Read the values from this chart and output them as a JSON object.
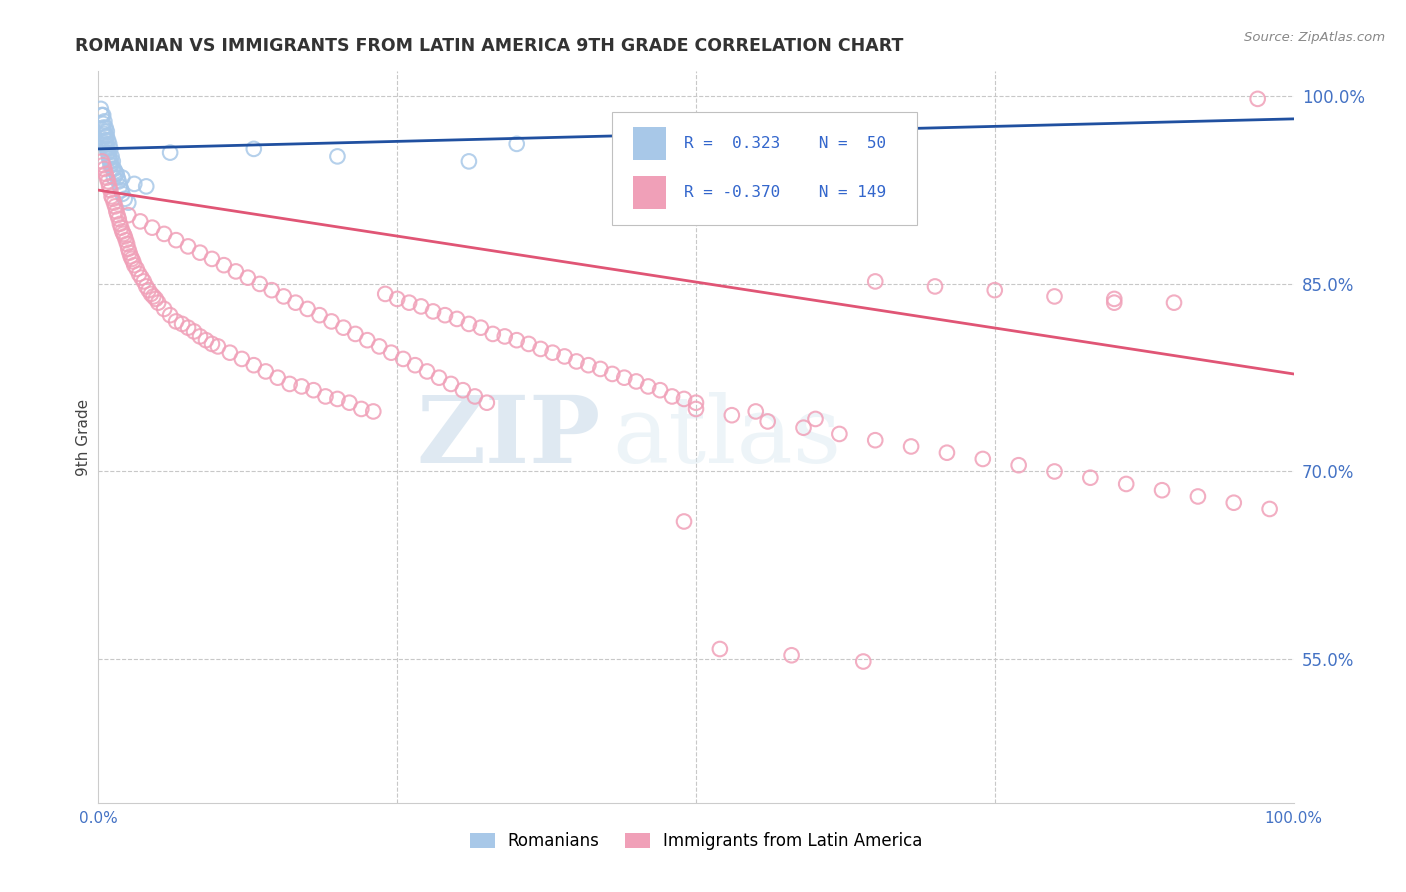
{
  "title": "ROMANIAN VS IMMIGRANTS FROM LATIN AMERICA 9TH GRADE CORRELATION CHART",
  "source": "Source: ZipAtlas.com",
  "ylabel": "9th Grade",
  "xlim": [
    0.0,
    1.0
  ],
  "ylim": [
    0.435,
    1.02
  ],
  "yticks": [
    1.0,
    0.85,
    0.7,
    0.55
  ],
  "ytick_labels": [
    "100.0%",
    "85.0%",
    "70.0%",
    "55.0%"
  ],
  "grid_color": "#c8c8c8",
  "background_color": "#ffffff",
  "blue_color": "#a8c8e8",
  "pink_color": "#f0a0b8",
  "blue_line_color": "#2050a0",
  "pink_line_color": "#e05575",
  "legend_label_blue": "Romanians",
  "legend_label_pink": "Immigrants from Latin America",
  "watermark_ZIP": "ZIP",
  "watermark_atlas": "atlas",
  "blue_line_x": [
    0.0,
    1.0
  ],
  "blue_line_y": [
    0.958,
    0.982
  ],
  "pink_line_x": [
    0.0,
    1.0
  ],
  "pink_line_y": [
    0.925,
    0.778
  ],
  "blue_x": [
    0.002,
    0.003,
    0.004,
    0.004,
    0.005,
    0.005,
    0.006,
    0.006,
    0.007,
    0.007,
    0.007,
    0.008,
    0.008,
    0.009,
    0.009,
    0.01,
    0.01,
    0.011,
    0.012,
    0.013,
    0.013,
    0.014,
    0.015,
    0.016,
    0.017,
    0.018,
    0.019,
    0.02,
    0.022,
    0.025,
    0.003,
    0.004,
    0.005,
    0.006,
    0.006,
    0.007,
    0.008,
    0.009,
    0.01,
    0.011,
    0.012,
    0.015,
    0.02,
    0.03,
    0.04,
    0.06,
    0.13,
    0.2,
    0.31,
    0.35
  ],
  "blue_y": [
    0.99,
    0.985,
    0.985,
    0.975,
    0.98,
    0.97,
    0.975,
    0.965,
    0.972,
    0.968,
    0.96,
    0.965,
    0.955,
    0.962,
    0.95,
    0.958,
    0.945,
    0.952,
    0.948,
    0.942,
    0.935,
    0.94,
    0.938,
    0.935,
    0.932,
    0.928,
    0.925,
    0.922,
    0.918,
    0.915,
    0.985,
    0.978,
    0.972,
    0.968,
    0.962,
    0.958,
    0.955,
    0.952,
    0.948,
    0.945,
    0.942,
    0.938,
    0.935,
    0.93,
    0.928,
    0.955,
    0.958,
    0.952,
    0.948,
    0.962
  ],
  "pink_x": [
    0.003,
    0.004,
    0.005,
    0.006,
    0.007,
    0.008,
    0.009,
    0.01,
    0.011,
    0.012,
    0.013,
    0.014,
    0.015,
    0.016,
    0.017,
    0.018,
    0.019,
    0.02,
    0.021,
    0.022,
    0.023,
    0.024,
    0.025,
    0.026,
    0.027,
    0.028,
    0.029,
    0.03,
    0.032,
    0.034,
    0.036,
    0.038,
    0.04,
    0.042,
    0.044,
    0.046,
    0.048,
    0.05,
    0.055,
    0.06,
    0.065,
    0.07,
    0.075,
    0.08,
    0.085,
    0.09,
    0.095,
    0.1,
    0.11,
    0.12,
    0.13,
    0.14,
    0.15,
    0.16,
    0.17,
    0.18,
    0.19,
    0.2,
    0.21,
    0.22,
    0.23,
    0.24,
    0.25,
    0.26,
    0.27,
    0.28,
    0.29,
    0.3,
    0.31,
    0.32,
    0.33,
    0.34,
    0.35,
    0.36,
    0.37,
    0.38,
    0.39,
    0.4,
    0.41,
    0.42,
    0.43,
    0.44,
    0.45,
    0.46,
    0.47,
    0.48,
    0.49,
    0.5,
    0.55,
    0.6,
    0.65,
    0.7,
    0.75,
    0.8,
    0.85,
    0.9,
    0.025,
    0.035,
    0.045,
    0.055,
    0.065,
    0.075,
    0.085,
    0.095,
    0.105,
    0.115,
    0.125,
    0.135,
    0.145,
    0.155,
    0.165,
    0.175,
    0.185,
    0.195,
    0.205,
    0.215,
    0.225,
    0.235,
    0.245,
    0.255,
    0.265,
    0.275,
    0.285,
    0.295,
    0.305,
    0.315,
    0.325,
    0.5,
    0.53,
    0.56,
    0.59,
    0.62,
    0.65,
    0.68,
    0.71,
    0.74,
    0.77,
    0.8,
    0.83,
    0.86,
    0.89,
    0.92,
    0.95,
    0.98,
    0.49,
    0.52,
    0.58,
    0.64,
    0.85,
    0.97
  ],
  "pink_y": [
    0.948,
    0.945,
    0.942,
    0.938,
    0.935,
    0.932,
    0.928,
    0.925,
    0.92,
    0.918,
    0.915,
    0.912,
    0.908,
    0.905,
    0.902,
    0.898,
    0.895,
    0.892,
    0.89,
    0.888,
    0.885,
    0.882,
    0.878,
    0.875,
    0.872,
    0.87,
    0.868,
    0.865,
    0.862,
    0.858,
    0.855,
    0.852,
    0.848,
    0.845,
    0.842,
    0.84,
    0.838,
    0.835,
    0.83,
    0.825,
    0.82,
    0.818,
    0.815,
    0.812,
    0.808,
    0.805,
    0.802,
    0.8,
    0.795,
    0.79,
    0.785,
    0.78,
    0.775,
    0.77,
    0.768,
    0.765,
    0.76,
    0.758,
    0.755,
    0.75,
    0.748,
    0.842,
    0.838,
    0.835,
    0.832,
    0.828,
    0.825,
    0.822,
    0.818,
    0.815,
    0.81,
    0.808,
    0.805,
    0.802,
    0.798,
    0.795,
    0.792,
    0.788,
    0.785,
    0.782,
    0.778,
    0.775,
    0.772,
    0.768,
    0.765,
    0.76,
    0.758,
    0.755,
    0.748,
    0.742,
    0.852,
    0.848,
    0.845,
    0.84,
    0.838,
    0.835,
    0.905,
    0.9,
    0.895,
    0.89,
    0.885,
    0.88,
    0.875,
    0.87,
    0.865,
    0.86,
    0.855,
    0.85,
    0.845,
    0.84,
    0.835,
    0.83,
    0.825,
    0.82,
    0.815,
    0.81,
    0.805,
    0.8,
    0.795,
    0.79,
    0.785,
    0.78,
    0.775,
    0.77,
    0.765,
    0.76,
    0.755,
    0.75,
    0.745,
    0.74,
    0.735,
    0.73,
    0.725,
    0.72,
    0.715,
    0.71,
    0.705,
    0.7,
    0.695,
    0.69,
    0.685,
    0.68,
    0.675,
    0.67,
    0.66,
    0.558,
    0.553,
    0.548,
    0.835,
    0.998
  ]
}
